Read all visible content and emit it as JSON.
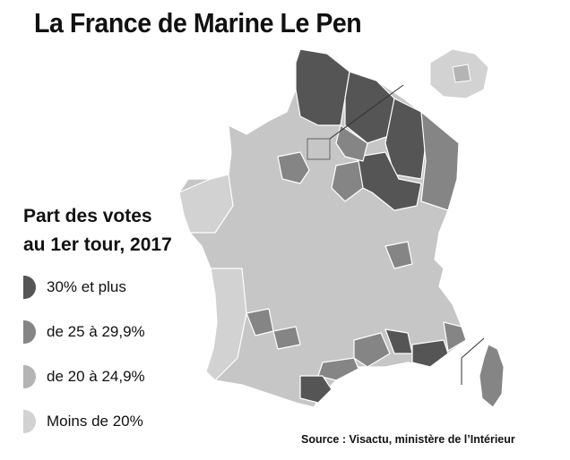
{
  "title": "La France de Marine Le Pen",
  "legend": {
    "title_line1": "Part des votes",
    "title_line2": "au 1er tour, 2017",
    "items": [
      {
        "label": "30% et plus",
        "color": "#555555"
      },
      {
        "label": "de 25 à 29,9%",
        "color": "#858585"
      },
      {
        "label": "de 20 à 24,9%",
        "color": "#b4b4b4"
      },
      {
        "label": "Moins de 20%",
        "color": "#d2d2d2"
      }
    ]
  },
  "source": "Source : Visactu, ministère de l’Intérieur"
}
